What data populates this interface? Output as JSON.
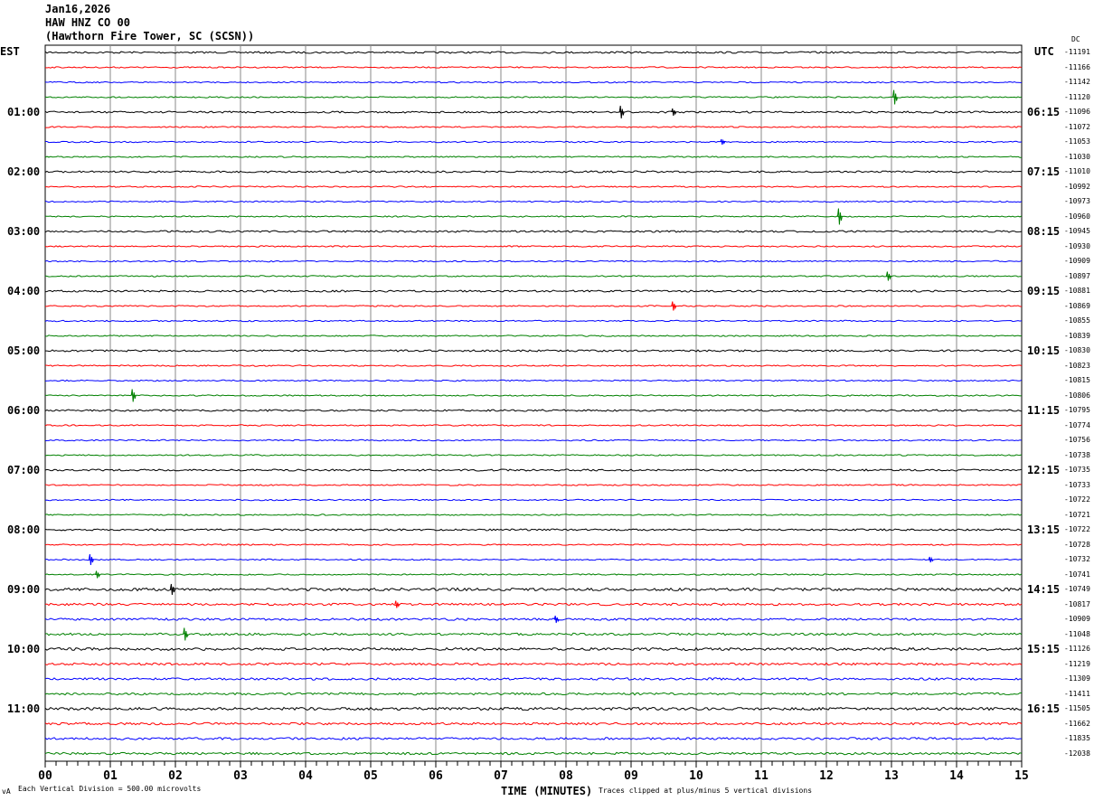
{
  "header": {
    "date": "Jan16,2026",
    "channel": "HAW HNZ CO 00",
    "station": "(Hawthorn Fire Tower, SC (SCSN))"
  },
  "left_timezone": "EST",
  "right_timezone": "UTC",
  "dc_header": "DC",
  "footer": {
    "scale_note": "Each Vertical Division =  500.00 microvolts",
    "xlabel": "TIME (MINUTES)",
    "clip_note": "Traces clipped at plus/minus 5 vertical divisions",
    "corner_mark": "vA"
  },
  "chart_data": {
    "type": "line",
    "xlabel": "TIME (MINUTES)",
    "xlim": [
      0,
      15
    ],
    "x_ticks": [
      "00",
      "01",
      "02",
      "03",
      "04",
      "05",
      "06",
      "07",
      "08",
      "09",
      "10",
      "11",
      "12",
      "13",
      "14",
      "15"
    ],
    "grid": "vertical lines every minute",
    "trace_colors": [
      "#000000",
      "#ff0000",
      "#0000ff",
      "#008000"
    ],
    "left_hour_labels": [
      "",
      "01:00",
      "02:00",
      "03:00",
      "04:00",
      "05:00",
      "06:00",
      "07:00",
      "08:00",
      "09:00",
      "10:00",
      "11:00"
    ],
    "right_hour_labels": [
      "",
      "06:15",
      "07:15",
      "08:15",
      "09:15",
      "10:15",
      "11:15",
      "12:15",
      "13:15",
      "14:15",
      "15:15",
      "16:15"
    ],
    "dc_offsets": [
      "-11191",
      "-11166",
      "-11142",
      "-11120",
      "-11096",
      "-11072",
      "-11053",
      "-11030",
      "-11010",
      "-10992",
      "-10973",
      "-10960",
      "-10945",
      "-10930",
      "-10909",
      "-10897",
      "-10881",
      "-10869",
      "-10855",
      "-10839",
      "-10830",
      "-10823",
      "-10815",
      "-10806",
      "-10795",
      "-10774",
      "-10756",
      "-10738",
      "-10735",
      "-10733",
      "-10722",
      "-10721",
      "-10722",
      "-10728",
      "-10732",
      "-10741",
      "-10749",
      "-10817",
      "-10909",
      "-11048",
      "-11126",
      "-11219",
      "-11309",
      "-11411",
      "-11505",
      "-11662",
      "-11835",
      "-12038"
    ],
    "events": [
      [
        3,
        13.05,
        8
      ],
      [
        4,
        8.85,
        7
      ],
      [
        4,
        9.65,
        4
      ],
      [
        6,
        10.4,
        3
      ],
      [
        11,
        12.2,
        9
      ],
      [
        15,
        12.95,
        5
      ],
      [
        17,
        9.65,
        5
      ],
      [
        23,
        1.35,
        7
      ],
      [
        34,
        0.7,
        6
      ],
      [
        34,
        13.6,
        3
      ],
      [
        35,
        0.8,
        4
      ],
      [
        36,
        1.95,
        6
      ],
      [
        37,
        5.4,
        4
      ],
      [
        38,
        7.85,
        4
      ],
      [
        39,
        2.15,
        7
      ]
    ]
  }
}
